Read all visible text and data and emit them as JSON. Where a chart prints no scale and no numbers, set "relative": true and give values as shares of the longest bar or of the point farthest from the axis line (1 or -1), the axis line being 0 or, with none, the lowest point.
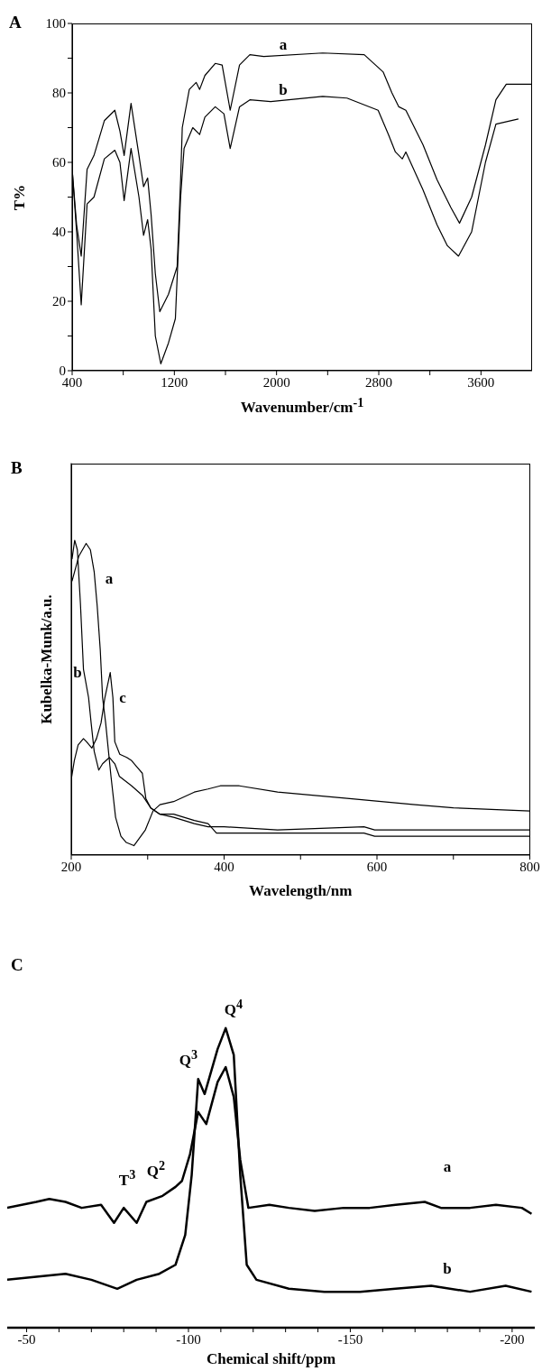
{
  "chart_data": [
    {
      "type": "line",
      "title": "A",
      "xlabel": "Wavenumber/cm$^{-1}$",
      "ylabel": "T%",
      "xlim": [
        400,
        4000
      ],
      "ylim": [
        0,
        100
      ],
      "xticks": [
        400,
        {
          "value": 800,
          "label": null
        },
        1200,
        {
          "value": 1600,
          "label": null
        },
        2000,
        {
          "value": 2400,
          "label": null
        },
        2800,
        {
          "value": 3200,
          "label": null
        },
        3600
      ],
      "yticks": [
        0,
        {
          "value": 10,
          "label": null
        },
        20,
        {
          "value": 30,
          "label": null
        },
        40,
        {
          "value": 50,
          "label": null
        },
        60,
        {
          "value": 70,
          "label": null
        },
        80,
        {
          "value": 90,
          "label": null
        },
        100
      ],
      "marker": "none",
      "line_style": "solid",
      "series": [
        {
          "name": "a",
          "color": "#000000",
          "x": [
            400,
            435,
            471,
            517,
            544,
            571,
            652,
            734,
            774,
            807,
            861,
            923,
            959,
            991,
            1018,
            1051,
            1086,
            1154,
            1222,
            1249,
            1262,
            1317,
            1371,
            1398,
            1439,
            1520,
            1574,
            1637,
            1710,
            1791,
            1900,
            2361,
            2686,
            2835,
            2903,
            2957,
            3012,
            3147,
            3256,
            3364,
            3432,
            3527,
            3635,
            3717,
            3798,
            4000
          ],
          "values": [
            58,
            42,
            33,
            58,
            60,
            62,
            72,
            75,
            69,
            62,
            77,
            62,
            53,
            55.5,
            45,
            28,
            17,
            22,
            30,
            55,
            70,
            81,
            83,
            81,
            85,
            88.5,
            88,
            75,
            88,
            91,
            90.5,
            91.5,
            91,
            86,
            80,
            76,
            75,
            65,
            55,
            47,
            42.5,
            50,
            65,
            78,
            82.5,
            82.5
          ]
        },
        {
          "name": "b",
          "color": "#000000",
          "x": [
            400,
            435,
            471,
            517,
            571,
            652,
            734,
            774,
            807,
            861,
            923,
            959,
            991,
            1018,
            1051,
            1094,
            1154,
            1208,
            1249,
            1276,
            1344,
            1398,
            1439,
            1520,
            1588,
            1637,
            1710,
            1791,
            1954,
            2361,
            2551,
            2795,
            2876,
            2930,
            2984,
            3012,
            3147,
            3256,
            3337,
            3424,
            3527,
            3635,
            3717,
            3893
          ],
          "values": [
            58,
            40,
            19,
            48,
            50,
            61,
            63.5,
            60,
            49,
            64,
            50,
            39,
            43.5,
            35,
            10,
            2,
            8,
            15,
            50,
            64,
            70,
            68,
            73,
            76,
            74,
            64,
            76,
            78,
            77.5,
            79,
            78.5,
            75,
            68,
            63,
            61,
            63,
            52,
            42,
            36,
            33,
            40,
            60,
            71,
            72.5
          ]
        }
      ]
    },
    {
      "type": "line",
      "title": "B",
      "xlabel": "Wavelength/nm",
      "ylabel": "Kubelka-Munk/a.u.",
      "relative": true,
      "xlim": [
        200,
        800
      ],
      "xticks": [
        200,
        {
          "value": 300,
          "label": null
        },
        400,
        {
          "value": 500,
          "label": null
        },
        600,
        {
          "value": 700,
          "label": null
        },
        800
      ],
      "marker": "none",
      "line_style": "solid",
      "series": [
        {
          "name": "a",
          "color": "#000000",
          "x": [
            201,
            210,
            219.5,
            225,
            230,
            234,
            238,
            241,
            245,
            252,
            258,
            265,
            272,
            282,
            288,
            297,
            307,
            316,
            334,
            361,
            379,
            395,
            420,
            470,
            561,
            650,
            700,
            800
          ],
          "values": [
            0.87,
            0.95,
            0.99,
            0.97,
            0.9,
            0.79,
            0.65,
            0.5,
            0.42,
            0.25,
            0.12,
            0.06,
            0.04,
            0.03,
            0.05,
            0.08,
            0.14,
            0.16,
            0.17,
            0.2,
            0.21,
            0.22,
            0.22,
            0.2,
            0.18,
            0.16,
            0.15,
            0.14
          ]
        },
        {
          "name": "b",
          "color": "#000000",
          "x": [
            201,
            204.5,
            208,
            212,
            216,
            222.7,
            226,
            230,
            236,
            241,
            250,
            257,
            263,
            279,
            293,
            304,
            316,
            334,
            361,
            379,
            400,
            470,
            583,
            597,
            800
          ],
          "values": [
            0.94,
            1,
            0.97,
            0.8,
            0.59,
            0.5,
            0.42,
            0.33,
            0.27,
            0.29,
            0.31,
            0.29,
            0.25,
            0.22,
            0.19,
            0.15,
            0.13,
            0.12,
            0.1,
            0.09,
            0.09,
            0.08,
            0.09,
            0.08,
            0.08
          ]
        },
        {
          "name": "c",
          "color": "#000000",
          "x": [
            200,
            204,
            209,
            216,
            220,
            227,
            233,
            239,
            244,
            251,
            254.5,
            257,
            263.5,
            272.6,
            279,
            286,
            293,
            297.6,
            304,
            316,
            334,
            361,
            379,
            390,
            400,
            583,
            597,
            800
          ],
          "values": [
            0.24,
            0.3,
            0.35,
            0.37,
            0.36,
            0.34,
            0.37,
            0.42,
            0.5,
            0.58,
            0.5,
            0.36,
            0.32,
            0.31,
            0.3,
            0.28,
            0.26,
            0.18,
            0.15,
            0.13,
            0.13,
            0.11,
            0.1,
            0.07,
            0.07,
            0.07,
            0.06,
            0.06
          ]
        }
      ]
    },
    {
      "type": "line",
      "title": "C",
      "xlabel": "Chemical shift/ppm",
      "relative": true,
      "xlim": [
        -44,
        -207
      ],
      "xticks": [
        -50,
        {
          "value": -60,
          "label": null
        },
        {
          "value": -70,
          "label": null
        },
        {
          "value": -80,
          "label": null
        },
        {
          "value": -90,
          "label": null
        },
        -100,
        {
          "value": -110,
          "label": null
        },
        {
          "value": -120,
          "label": null
        },
        {
          "value": -130,
          "label": null
        },
        {
          "value": -140,
          "label": null
        },
        -150,
        {
          "value": -160,
          "label": null
        },
        {
          "value": -170,
          "label": null
        },
        {
          "value": -180,
          "label": null
        },
        {
          "value": -190,
          "label": null
        },
        -200
      ],
      "marker": "none",
      "line_style": "solid",
      "annotations": [
        "T$^{3}$",
        "Q$^{2}$",
        "Q$^{3}$",
        "Q$^{4}$"
      ],
      "series": [
        {
          "name": "a",
          "color": "#000000",
          "x": [
            -44,
            -53,
            -57,
            -62,
            -67,
            -73,
            -77,
            -80,
            -84,
            -87,
            -92,
            -96,
            -98,
            -100.5,
            -103,
            -105.5,
            -109,
            -111.5,
            -114,
            -116,
            -118.5,
            -125,
            -131,
            -139,
            -148,
            -156,
            -164,
            -173,
            -178,
            -187,
            -195,
            -203,
            -206
          ],
          "values": [
            0.4,
            0.42,
            0.43,
            0.42,
            0.4,
            0.41,
            0.35,
            0.4,
            0.35,
            0.42,
            0.44,
            0.47,
            0.49,
            0.58,
            0.72,
            0.68,
            0.82,
            0.87,
            0.77,
            0.56,
            0.4,
            0.41,
            0.4,
            0.39,
            0.4,
            0.4,
            0.41,
            0.42,
            0.4,
            0.4,
            0.41,
            0.4,
            0.38
          ]
        },
        {
          "name": "b",
          "color": "#000000",
          "x": [
            -44,
            -53,
            -62,
            -70,
            -78,
            -84,
            -91,
            -96,
            -99,
            -101,
            -103,
            -105,
            -109,
            -111.5,
            -114,
            -116,
            -118,
            -121,
            -131,
            -142,
            -153,
            -164,
            -175,
            -187,
            -198,
            -206
          ],
          "values": [
            0.16,
            0.17,
            0.18,
            0.16,
            0.13,
            0.16,
            0.18,
            0.21,
            0.31,
            0.51,
            0.83,
            0.78,
            0.93,
            1,
            0.91,
            0.51,
            0.21,
            0.16,
            0.13,
            0.12,
            0.12,
            0.13,
            0.14,
            0.12,
            0.14,
            0.12
          ]
        }
      ]
    }
  ]
}
